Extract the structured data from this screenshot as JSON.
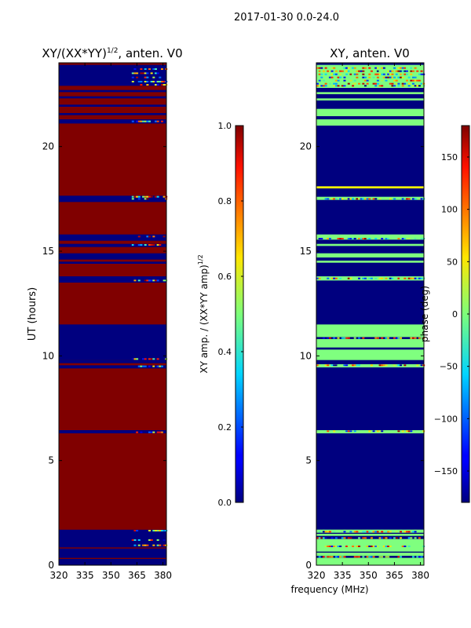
{
  "figure": {
    "suptitle": "2017-01-30 0.0-24.0",
    "xlabel_shared": "frequency (MHz)"
  },
  "chart_data": [
    {
      "type": "heatmap",
      "title_main": "XY/(XX*YY)",
      "title_sup": "1/2",
      "title_tail": ", anten. V0",
      "xlabel": "",
      "ylabel": "UT (hours)",
      "xlim": [
        320,
        382
      ],
      "ylim": [
        0,
        24
      ],
      "xticks": [
        320,
        335,
        350,
        365,
        380
      ],
      "xtick_labels": [
        "320",
        "335",
        "350",
        "365",
        "380"
      ],
      "yticks": [
        0,
        5,
        10,
        15,
        20
      ],
      "ytick_labels": [
        "0",
        "5",
        "10",
        "15",
        "20"
      ],
      "base_color": "#800000",
      "bands": [
        {
          "y0": 0.0,
          "y1": 0.3,
          "color": "#00007f"
        },
        {
          "y0": 0.3,
          "y1": 0.35,
          "color": "#800000"
        },
        {
          "y0": 0.35,
          "y1": 0.8,
          "color": "#00007f"
        },
        {
          "y0": 0.8,
          "y1": 0.85,
          "color": "#800000"
        },
        {
          "y0": 0.85,
          "y1": 1.7,
          "color": "#00007f"
        },
        {
          "y0": 1.7,
          "y1": 1.75,
          "color": "#800000"
        },
        {
          "y0": 6.3,
          "y1": 6.45,
          "color": "#00007f"
        },
        {
          "y0": 9.4,
          "y1": 9.55,
          "color": "#00007f"
        },
        {
          "y0": 9.65,
          "y1": 9.8,
          "color": "#00007f"
        },
        {
          "y0": 9.8,
          "y1": 11.5,
          "color": "#00007f"
        },
        {
          "y0": 13.5,
          "y1": 13.8,
          "color": "#00007f"
        },
        {
          "y0": 14.4,
          "y1": 14.5,
          "color": "#00007f"
        },
        {
          "y0": 14.6,
          "y1": 14.9,
          "color": "#00007f"
        },
        {
          "y0": 15.2,
          "y1": 15.35,
          "color": "#00007f"
        },
        {
          "y0": 15.5,
          "y1": 15.8,
          "color": "#00007f"
        },
        {
          "y0": 17.35,
          "y1": 17.65,
          "color": "#00007f"
        },
        {
          "y0": 21.1,
          "y1": 21.3,
          "color": "#00007f"
        },
        {
          "y0": 21.5,
          "y1": 21.6,
          "color": "#00007f"
        },
        {
          "y0": 21.9,
          "y1": 22.0,
          "color": "#00007f"
        },
        {
          "y0": 22.3,
          "y1": 22.4,
          "color": "#00007f"
        },
        {
          "y0": 22.6,
          "y1": 22.7,
          "color": "#00007f"
        },
        {
          "y0": 22.9,
          "y1": 23.9,
          "color": "#00007f"
        }
      ],
      "speckle_rows": [
        0.95,
        1.2,
        1.65,
        6.35,
        9.5,
        9.85,
        13.6,
        15.3,
        15.7,
        17.5,
        17.6,
        21.2,
        22.95,
        23.1,
        23.3,
        23.5,
        23.7
      ],
      "speckle_freq_range": [
        362,
        382
      ],
      "colorbar": {
        "label_main": "XY amp. / (XX*YY amp)",
        "label_sup": "1/2",
        "min": 0.0,
        "max": 1.0,
        "ticks": [
          0.0,
          0.2,
          0.4,
          0.6,
          0.8,
          1.0
        ],
        "tick_labels": [
          "0.0",
          "0.2",
          "0.4",
          "0.6",
          "0.8",
          "1.0"
        ]
      }
    },
    {
      "type": "heatmap",
      "title_main": "XY, anten. V0",
      "title_sup": "",
      "title_tail": "",
      "xlabel": "frequency (MHz)",
      "ylabel": "",
      "xlim": [
        320,
        382
      ],
      "ylim": [
        0,
        24
      ],
      "xticks": [
        320,
        335,
        350,
        365,
        380
      ],
      "xtick_labels": [
        "320",
        "335",
        "350",
        "365",
        "380"
      ],
      "yticks": [
        0,
        5,
        10,
        15,
        20
      ],
      "ytick_labels": [
        "0",
        "5",
        "10",
        "15",
        "20"
      ],
      "base_color": "#00007f",
      "bands": [
        {
          "y0": 0.0,
          "y1": 0.35,
          "color": "#7fff7f"
        },
        {
          "y0": 0.45,
          "y1": 0.6,
          "color": "#7fff7f"
        },
        {
          "y0": 0.65,
          "y1": 1.25,
          "color": "#7fff7f"
        },
        {
          "y0": 1.4,
          "y1": 1.5,
          "color": "#7fff7f"
        },
        {
          "y0": 1.55,
          "y1": 1.7,
          "color": "#7fff7f"
        },
        {
          "y0": 6.3,
          "y1": 6.45,
          "color": "#7fff7f"
        },
        {
          "y0": 9.45,
          "y1": 9.6,
          "color": "#7fff7f"
        },
        {
          "y0": 9.8,
          "y1": 10.3,
          "color": "#7fff7f"
        },
        {
          "y0": 10.4,
          "y1": 10.8,
          "color": "#7fff7f"
        },
        {
          "y0": 10.9,
          "y1": 11.5,
          "color": "#7fff7f"
        },
        {
          "y0": 13.6,
          "y1": 13.8,
          "color": "#7fff7f"
        },
        {
          "y0": 14.45,
          "y1": 14.55,
          "color": "#7fff7f"
        },
        {
          "y0": 14.7,
          "y1": 14.9,
          "color": "#7fff7f"
        },
        {
          "y0": 15.25,
          "y1": 15.35,
          "color": "#7fff7f"
        },
        {
          "y0": 15.55,
          "y1": 15.8,
          "color": "#7fff7f"
        },
        {
          "y0": 17.45,
          "y1": 17.6,
          "color": "#7fff7f"
        },
        {
          "y0": 18.0,
          "y1": 18.1,
          "color": "#ffff00"
        },
        {
          "y0": 21.0,
          "y1": 21.3,
          "color": "#7fff7f"
        },
        {
          "y0": 21.45,
          "y1": 21.8,
          "color": "#7fff7f"
        },
        {
          "y0": 22.2,
          "y1": 22.3,
          "color": "#7fff7f"
        },
        {
          "y0": 22.5,
          "y1": 22.6,
          "color": "#7fff7f"
        },
        {
          "y0": 22.8,
          "y1": 23.9,
          "color": "#7fff7f"
        }
      ],
      "speckle_rows": [
        0.4,
        0.9,
        1.3,
        1.6,
        6.4,
        9.55,
        10.85,
        13.7,
        15.6,
        17.5,
        22.9,
        23.0,
        23.15,
        23.3,
        23.45,
        23.6,
        23.75
      ],
      "speckle_freq_range": [
        320,
        382
      ],
      "colorbar": {
        "label_main": "phase (deg)",
        "label_sup": "",
        "min": -180,
        "max": 180,
        "ticks": [
          -150,
          -100,
          -50,
          0,
          50,
          100,
          150
        ],
        "tick_labels": [
          "−150",
          "−100",
          "−50",
          "0",
          "50",
          "100",
          "150"
        ]
      }
    }
  ]
}
